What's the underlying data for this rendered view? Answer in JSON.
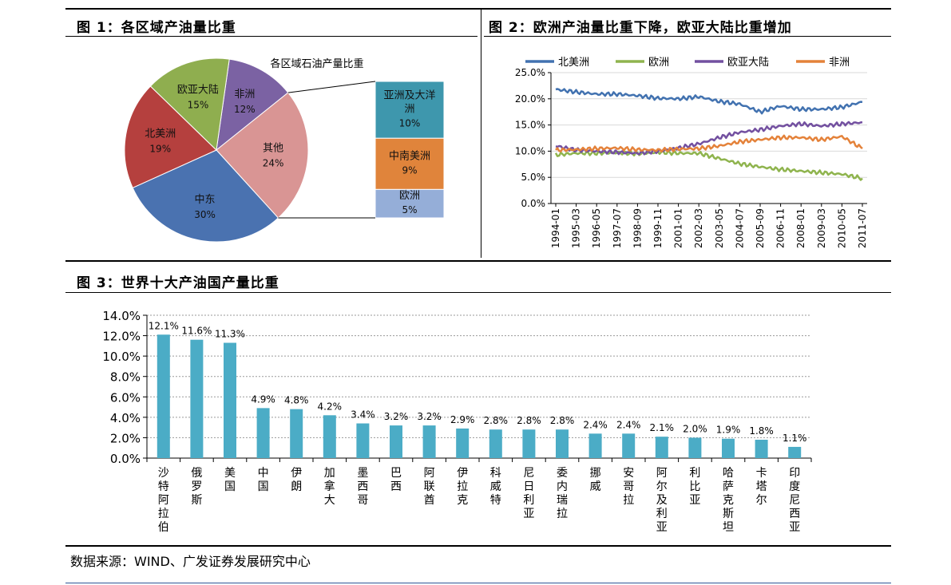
{
  "fig1": {
    "title": "图 1：各区域产油量比重",
    "chart_data": {
      "type": "pie",
      "title": "各区域石油产量比重",
      "slices": [
        {
          "label": "非洲",
          "value": 12,
          "display": "12%",
          "color": "#7b62a3"
        },
        {
          "label": "其他",
          "value": 24,
          "display": "24%",
          "color": "#d99594"
        },
        {
          "label": "中东",
          "value": 30,
          "display": "30%",
          "color": "#4a72b0"
        },
        {
          "label": "北美洲",
          "value": 19,
          "display": "19%",
          "color": "#b5403e"
        },
        {
          "label": "欧亚大陆",
          "value": 15,
          "display": "15%",
          "color": "#8fae4f"
        }
      ],
      "breakdown": [
        {
          "label": "亚洲及大洋洲",
          "value": 10,
          "display": "10%",
          "color": "#3e97ad"
        },
        {
          "label": "中南美洲",
          "value": 9,
          "display": "9%",
          "color": "#e0843b"
        },
        {
          "label": "欧洲",
          "value": 5,
          "display": "5%",
          "color": "#95aed8"
        }
      ]
    }
  },
  "fig2": {
    "title": "图 2：欧洲产油量比重下降，欧亚大陆比重增加",
    "chart_data": {
      "type": "line",
      "x": [
        "1994-01",
        "1995-03",
        "1996-05",
        "1997-07",
        "1998-09",
        "1999-11",
        "2001-01",
        "2002-03",
        "2003-05",
        "2004-07",
        "2005-09",
        "2006-11",
        "2008-01",
        "2009-03",
        "2010-05",
        "2011-07"
      ],
      "y_ticks": [
        "0.0%",
        "5.0%",
        "10.0%",
        "15.0%",
        "20.0%",
        "25.0%"
      ],
      "ylim": [
        0,
        25
      ],
      "series": [
        {
          "name": "北美洲",
          "color": "#4272b0",
          "values": [
            21.8,
            21.3,
            20.9,
            20.9,
            20.6,
            20.1,
            20.0,
            20.4,
            19.5,
            19.0,
            17.5,
            18.6,
            18.0,
            18.0,
            18.4,
            19.4
          ]
        },
        {
          "name": "欧洲",
          "color": "#8fb44e",
          "values": [
            9.3,
            9.6,
            9.6,
            9.7,
            9.5,
            9.8,
            9.6,
            9.6,
            8.6,
            7.6,
            7.0,
            6.5,
            6.2,
            5.9,
            5.6,
            4.8
          ]
        },
        {
          "name": "欧亚大陆",
          "color": "#7350a0",
          "values": [
            11.0,
            10.2,
            10.0,
            9.8,
            9.6,
            10.0,
            10.6,
            11.4,
            12.6,
            13.6,
            14.1,
            14.8,
            15.2,
            14.8,
            15.2,
            15.5
          ]
        },
        {
          "name": "非洲",
          "color": "#e4823a",
          "values": [
            10.2,
            10.3,
            10.5,
            10.6,
            10.3,
            10.2,
            10.4,
            10.5,
            11.0,
            11.8,
            12.2,
            12.6,
            12.6,
            12.2,
            12.8,
            10.5
          ]
        }
      ]
    }
  },
  "fig3": {
    "title": "图 3：世界十大产油国产量比重",
    "chart_data": {
      "type": "bar",
      "color": "#4bacc6",
      "ylim": [
        0,
        14
      ],
      "y_ticks": [
        "0.0%",
        "2.0%",
        "4.0%",
        "6.0%",
        "8.0%",
        "10.0%",
        "12.0%",
        "14.0%"
      ],
      "categories": [
        "沙特阿拉伯",
        "俄罗斯",
        "美国",
        "中国",
        "伊朗",
        "加拿大",
        "墨西哥",
        "巴西",
        "阿联酋",
        "伊拉克",
        "科威特",
        "尼日利亚",
        "委内瑞拉",
        "挪威",
        "安哥拉",
        "阿尔及利亚",
        "利比亚",
        "哈萨克斯坦",
        "卡塔尔",
        "印度尼西亚"
      ],
      "values": [
        12.1,
        11.6,
        11.3,
        4.9,
        4.8,
        4.2,
        3.4,
        3.2,
        3.2,
        2.9,
        2.8,
        2.8,
        2.8,
        2.4,
        2.4,
        2.1,
        2.0,
        1.9,
        1.8,
        1.1
      ],
      "labels": [
        "12.1%",
        "11.6%",
        "11.3%",
        "4.9%",
        "4.8%",
        "4.2%",
        "3.4%",
        "3.2%",
        "3.2%",
        "2.9%",
        "2.8%",
        "2.8%",
        "2.8%",
        "2.4%",
        "2.4%",
        "2.1%",
        "2.0%",
        "1.9%",
        "1.8%",
        "1.1%"
      ]
    }
  },
  "source": "数据来源：WIND、广发证券发展研究中心"
}
